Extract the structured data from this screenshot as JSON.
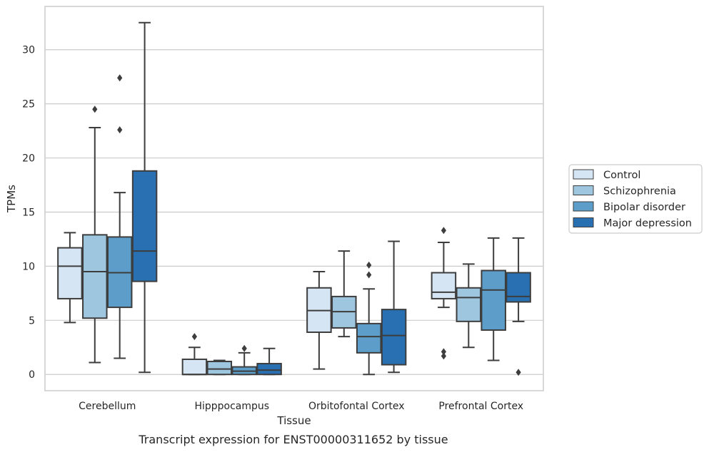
{
  "caption": "Transcript expression for ENST00000311652 by tissue",
  "chart_data": {
    "type": "boxplot",
    "title": "",
    "xlabel": "Tissue",
    "ylabel": "TPMs",
    "ylim": [
      -1.5,
      34.0
    ],
    "yticks": [
      0,
      5,
      10,
      15,
      20,
      25,
      30
    ],
    "grid": "horizontal",
    "legend_position": "right",
    "categories": [
      "Cerebellum",
      "Hipppocampus",
      "Orbitofontal Cortex",
      "Prefrontal Cortex"
    ],
    "series": [
      {
        "name": "Control",
        "color": "#d6e5f3",
        "boxes": [
          {
            "whislo": 4.8,
            "q1": 7.0,
            "med": 10.0,
            "q3": 11.7,
            "whishi": 13.1,
            "fliers": []
          },
          {
            "whislo": 0.0,
            "q1": 0.0,
            "med": 0.0,
            "q3": 1.4,
            "whishi": 2.5,
            "fliers": [
              3.5
            ]
          },
          {
            "whislo": 0.5,
            "q1": 3.9,
            "med": 5.9,
            "q3": 8.0,
            "whishi": 9.5,
            "fliers": []
          },
          {
            "whislo": 6.2,
            "q1": 7.0,
            "med": 7.6,
            "q3": 9.4,
            "whishi": 12.2,
            "fliers": [
              13.3,
              2.1,
              1.7
            ]
          }
        ]
      },
      {
        "name": "Schizophrenia",
        "color": "#9ec6de",
        "boxes": [
          {
            "whislo": 1.1,
            "q1": 5.2,
            "med": 9.5,
            "q3": 12.9,
            "whishi": 22.8,
            "fliers": [
              24.5
            ]
          },
          {
            "whislo": 0.0,
            "q1": 0.0,
            "med": 0.5,
            "q3": 1.2,
            "whishi": 1.3,
            "fliers": []
          },
          {
            "whislo": 3.5,
            "q1": 4.3,
            "med": 5.8,
            "q3": 7.2,
            "whishi": 11.4,
            "fliers": []
          },
          {
            "whislo": 2.5,
            "q1": 4.9,
            "med": 7.1,
            "q3": 8.0,
            "whishi": 10.2,
            "fliers": []
          }
        ]
      },
      {
        "name": "Bipolar disorder",
        "color": "#5c9ec9",
        "boxes": [
          {
            "whislo": 1.5,
            "q1": 6.2,
            "med": 9.4,
            "q3": 12.7,
            "whishi": 16.8,
            "fliers": [
              27.4,
              22.6
            ]
          },
          {
            "whislo": 0.0,
            "q1": 0.0,
            "med": 0.3,
            "q3": 0.7,
            "whishi": 2.0,
            "fliers": [
              2.4
            ]
          },
          {
            "whislo": 0.0,
            "q1": 2.0,
            "med": 3.5,
            "q3": 4.7,
            "whishi": 7.9,
            "fliers": [
              10.1,
              9.2
            ]
          },
          {
            "whislo": 1.3,
            "q1": 4.1,
            "med": 7.8,
            "q3": 9.6,
            "whishi": 12.6,
            "fliers": []
          }
        ]
      },
      {
        "name": "Major depression",
        "color": "#2870b1",
        "boxes": [
          {
            "whislo": 0.2,
            "q1": 8.6,
            "med": 11.4,
            "q3": 18.8,
            "whishi": 32.5,
            "fliers": []
          },
          {
            "whislo": 0.0,
            "q1": 0.0,
            "med": 0.4,
            "q3": 1.0,
            "whishi": 2.4,
            "fliers": []
          },
          {
            "whislo": 0.2,
            "q1": 0.9,
            "med": 3.6,
            "q3": 6.0,
            "whishi": 12.3,
            "fliers": []
          },
          {
            "whislo": 4.9,
            "q1": 6.7,
            "med": 7.2,
            "q3": 9.4,
            "whishi": 12.6,
            "fliers": [
              0.2
            ]
          }
        ]
      }
    ]
  }
}
